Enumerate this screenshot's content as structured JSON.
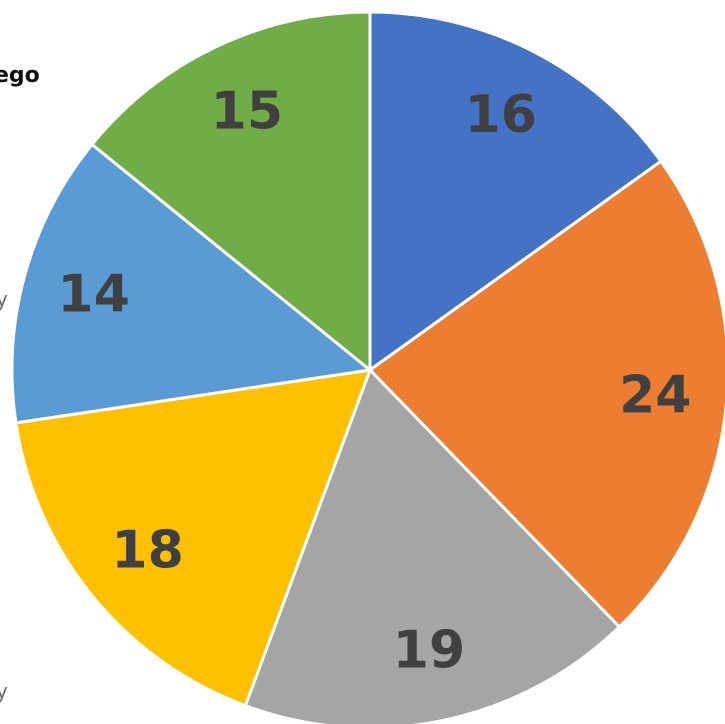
{
  "chart_data": {
    "type": "pie",
    "values": [
      16,
      24,
      19,
      18,
      14,
      15
    ],
    "colors": [
      "#4472c4",
      "#ed7d31",
      "#a5a5a5",
      "#ffc000",
      "#5b9bd5",
      "#70ad47"
    ],
    "annotations": [
      "ego",
      "y",
      "y"
    ]
  }
}
